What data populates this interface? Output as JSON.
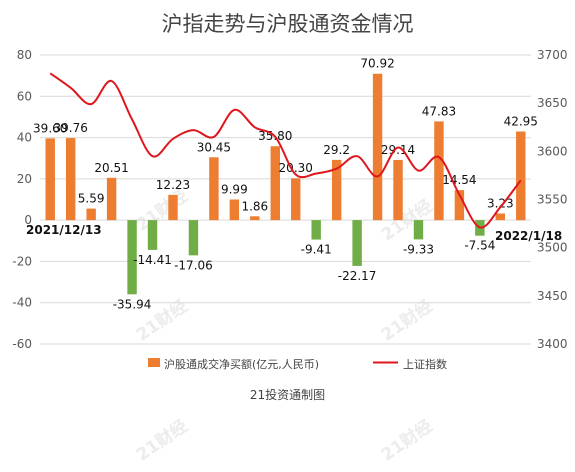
{
  "chart_data": {
    "type": "bar",
    "title": "沪指走势与沪股通资金情况",
    "source": "21投资通制图",
    "watermark": "21财经",
    "x_start_label": "2021/12/13",
    "x_end_label": "2022/1/18",
    "colors": {
      "positive": "#ED7D31",
      "negative": "#70AD47",
      "line": "#E0161D"
    },
    "left_axis": {
      "ylim": [
        -60,
        80
      ],
      "ticks": [
        "80",
        "60",
        "40",
        "20",
        "0",
        "-20",
        "-40",
        "-60"
      ]
    },
    "right_axis": {
      "ylim": [
        3400,
        3700
      ],
      "ticks": [
        "3700",
        "3650",
        "3600",
        "3550",
        "3500",
        "3450",
        "3400"
      ]
    },
    "series": [
      {
        "name": "沪股通成交净买额(亿元,人民币)",
        "axis": "left",
        "values": [
          39.6,
          39.76,
          5.59,
          20.51,
          -35.94,
          -14.41,
          12.23,
          -17.06,
          30.45,
          9.99,
          1.86,
          35.8,
          20.3,
          -9.41,
          29.2,
          -22.17,
          70.92,
          29.14,
          -9.33,
          47.83,
          14.54,
          -7.54,
          3.23,
          42.95
        ],
        "labels": [
          "39.60",
          "39.76",
          "5.59",
          "20.51",
          "-35.94",
          "-14.41",
          "12.23",
          "-17.06",
          "30.45",
          "9.99",
          "1.86",
          "35.80",
          "20.30",
          "-9.41",
          "29.2",
          "-22.17",
          "70.92",
          "29.14",
          "-9.33",
          "47.83",
          "14.54",
          "-7.54",
          "3.23",
          "42.95"
        ]
      },
      {
        "name": "上证指数",
        "axis": "right",
        "values": [
          3681,
          3666,
          3649,
          3673,
          3633,
          3595,
          3613,
          3622,
          3615,
          3643,
          3625,
          3615,
          3576,
          3577,
          3582,
          3595,
          3574,
          3604,
          3580,
          3594,
          3555,
          3521,
          3542,
          3570
        ]
      }
    ]
  }
}
